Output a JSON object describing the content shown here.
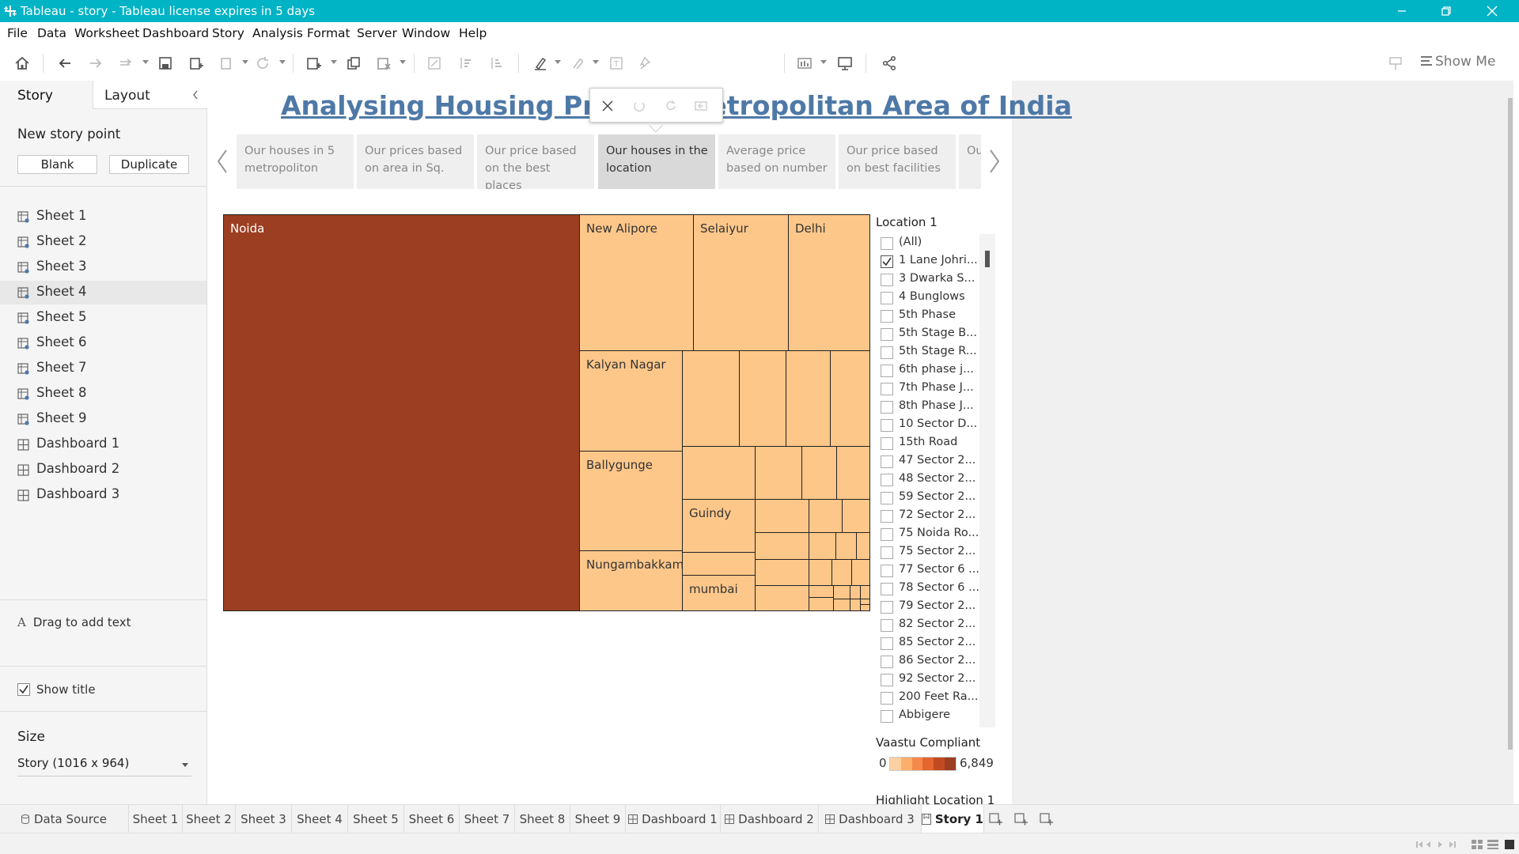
{
  "window": {
    "title": "Tableau - story - Tableau license expires in 5 days",
    "accent_color": "#00b3c5"
  },
  "menu": [
    "File",
    "Data",
    "Worksheet",
    "Dashboard",
    "Story",
    "Analysis",
    "Format",
    "Server",
    "Window",
    "Help"
  ],
  "toolbar": {
    "show_me_label": "Show Me",
    "icons": [
      "home-icon",
      "undo-icon",
      "redo-icon",
      "replay-icon",
      "save-icon",
      "new-datasource-icon",
      "pause-icon",
      "refresh-icon",
      "new-worksheet-icon",
      "duplicate-icon",
      "clear-icon",
      "swap-icon",
      "sort-asc-icon",
      "sort-desc-icon",
      "highlight-icon",
      "group-icon",
      "label-icon",
      "pin-icon",
      "fit-icon",
      "presentation-icon",
      "share-icon",
      "pointer-icon"
    ]
  },
  "left_pane": {
    "tab_story": "Story",
    "tab_layout": "Layout",
    "new_story_point": "New story point",
    "blank_label": "Blank",
    "duplicate_label": "Duplicate",
    "sheets": [
      {
        "label": "Sheet 1",
        "icon": "worksheet-icon"
      },
      {
        "label": "Sheet 2",
        "icon": "worksheet-icon"
      },
      {
        "label": "Sheet 3",
        "icon": "worksheet-icon"
      },
      {
        "label": "Sheet 4",
        "icon": "worksheet-icon"
      },
      {
        "label": "Sheet 5",
        "icon": "worksheet-icon"
      },
      {
        "label": "Sheet 6",
        "icon": "worksheet-icon"
      },
      {
        "label": "Sheet 7",
        "icon": "worksheet-icon"
      },
      {
        "label": "Sheet 8",
        "icon": "worksheet-icon"
      },
      {
        "label": "Sheet 9",
        "icon": "worksheet-icon"
      },
      {
        "label": "Dashboard 1",
        "icon": "dashboard-icon"
      },
      {
        "label": "Dashboard 2",
        "icon": "dashboard-icon"
      },
      {
        "label": "Dashboard 3",
        "icon": "dashboard-icon"
      }
    ],
    "selected_sheet": "Sheet 4",
    "drag_text": "Drag to add text",
    "show_title_label": "Show title",
    "show_title_checked": true,
    "size_heading": "Size",
    "size_value": "Story (1016 x 964)"
  },
  "story": {
    "title": "Analysing Housing Price in Metropolitan Area of India",
    "title_color": "#4e79a7",
    "points": [
      "Our houses in 5 metropoliton",
      "Our prices based on area in Sq.",
      "Our price based on the best places",
      "Our houses in the location",
      "Average price based on number",
      "Our price based on best facilities",
      "Our houses in the"
    ],
    "active_point": 3
  },
  "chart_data": {
    "type": "treemap",
    "color_measure": "Vaastu Compliant",
    "labeled_cells": [
      {
        "label": "Noida",
        "color": "#9c3e22"
      },
      {
        "label": "New Alipore",
        "color": "#fdc78a"
      },
      {
        "label": "Selaiyur",
        "color": "#fdc78a"
      },
      {
        "label": "Delhi",
        "color": "#fdc78a"
      },
      {
        "label": "Kalyan Nagar",
        "color": "#fdc78a"
      },
      {
        "label": "Ballygunge",
        "color": "#fdc78a"
      },
      {
        "label": "Guindy",
        "color": "#fdc78a"
      },
      {
        "label": "Nungambakkam",
        "color": "#fdc78a"
      },
      {
        "label": "mumbai",
        "color": "#fdc78a"
      }
    ],
    "legend": {
      "min": "0",
      "max": "6,849",
      "colors": [
        "#fdd0a2",
        "#fdae6b",
        "#f5894b",
        "#e4662d",
        "#c24a22",
        "#9c3e22"
      ]
    }
  },
  "filter": {
    "title": "Location 1",
    "items": [
      {
        "label": "(All)",
        "checked": false
      },
      {
        "label": "1 Lane Johri...",
        "checked": true
      },
      {
        "label": "3 Dwarka S...",
        "checked": false
      },
      {
        "label": "4 Bunglows",
        "checked": false
      },
      {
        "label": "5th Phase",
        "checked": false
      },
      {
        "label": "5th Stage B...",
        "checked": false
      },
      {
        "label": "5th Stage R...",
        "checked": false
      },
      {
        "label": "6th phase j...",
        "checked": false
      },
      {
        "label": "7th Phase J...",
        "checked": false
      },
      {
        "label": "8th Phase J...",
        "checked": false
      },
      {
        "label": "10 Sector D...",
        "checked": false
      },
      {
        "label": "15th Road",
        "checked": false
      },
      {
        "label": "47 Sector 2...",
        "checked": false
      },
      {
        "label": "48 Sector 2...",
        "checked": false
      },
      {
        "label": "59 Sector 2...",
        "checked": false
      },
      {
        "label": "72 Sector 2...",
        "checked": false
      },
      {
        "label": "75 Noida Ro...",
        "checked": false
      },
      {
        "label": "75 Sector 2...",
        "checked": false
      },
      {
        "label": "77 Sector 6 ...",
        "checked": false
      },
      {
        "label": "78 Sector 6 ...",
        "checked": false
      },
      {
        "label": "79 Sector 2...",
        "checked": false
      },
      {
        "label": "82 Sector 2...",
        "checked": false
      },
      {
        "label": "85 Sector 2...",
        "checked": false
      },
      {
        "label": "86 Sector 2...",
        "checked": false
      },
      {
        "label": "92 Sector 2...",
        "checked": false
      },
      {
        "label": "200 Feet Ra...",
        "checked": false
      },
      {
        "label": "Abbigere",
        "checked": false
      }
    ]
  },
  "legend": {
    "title": "Vaastu Compliant",
    "min": "0",
    "max": "6,849"
  },
  "highlight_title": "Highlight Location 1",
  "bottom_tabs": [
    {
      "label": "Data Source",
      "icon": "datasource-icon"
    },
    {
      "label": "Sheet 1",
      "icon": ""
    },
    {
      "label": "Sheet 2",
      "icon": ""
    },
    {
      "label": "Sheet 3",
      "icon": ""
    },
    {
      "label": "Sheet 4",
      "icon": ""
    },
    {
      "label": "Sheet 5",
      "icon": ""
    },
    {
      "label": "Sheet 6",
      "icon": ""
    },
    {
      "label": "Sheet 7",
      "icon": ""
    },
    {
      "label": "Sheet 8",
      "icon": ""
    },
    {
      "label": "Sheet 9",
      "icon": ""
    },
    {
      "label": "Dashboard 1",
      "icon": "dashboard-icon"
    },
    {
      "label": "Dashboard 2",
      "icon": "dashboard-icon"
    },
    {
      "label": "Dashboard 3",
      "icon": "dashboard-icon"
    },
    {
      "label": "Story 1",
      "icon": "story-icon"
    }
  ],
  "active_bottom_tab": "Story 1"
}
